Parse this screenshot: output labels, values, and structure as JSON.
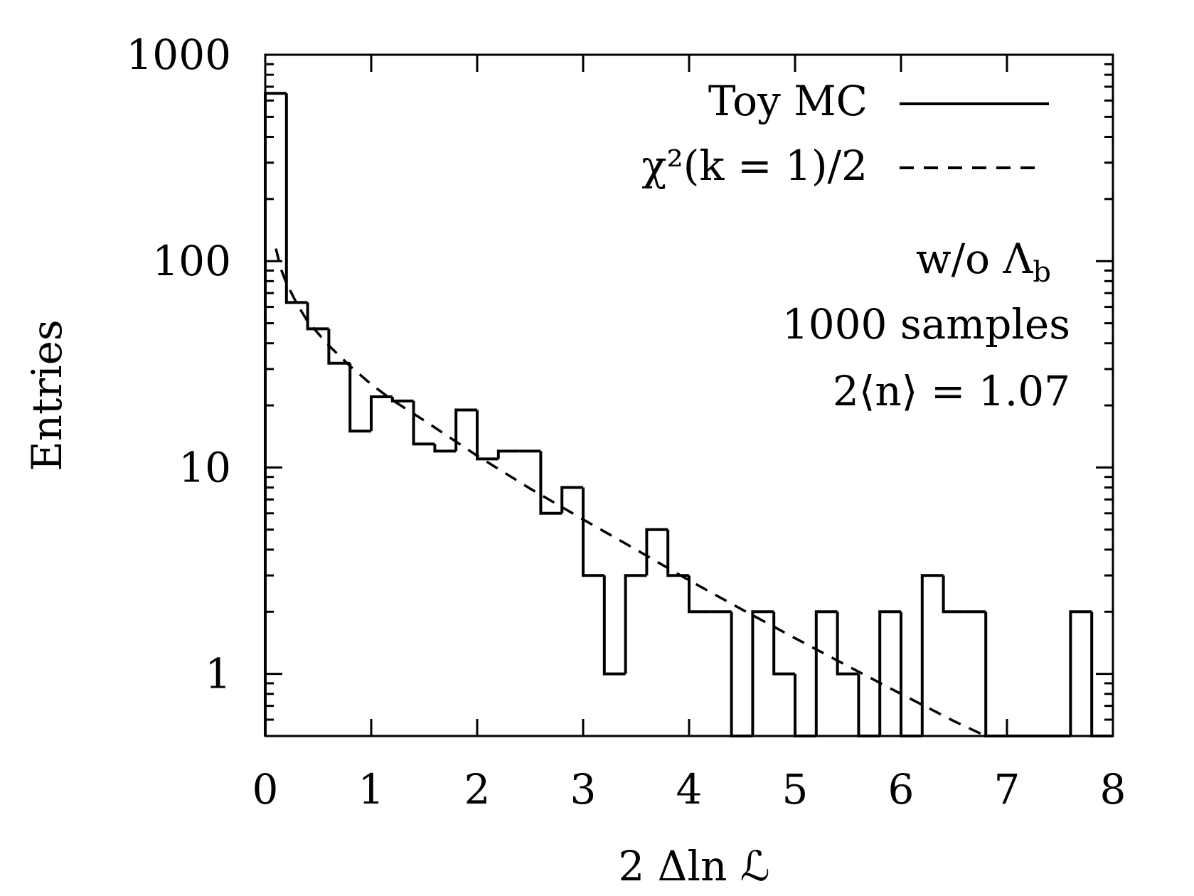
{
  "chart_data": {
    "type": "histogram",
    "xlabel": "2 Δln ℒ",
    "ylabel": "Entries",
    "xlim": [
      0,
      8
    ],
    "ylim": [
      0.5,
      1000
    ],
    "yscale": "log",
    "x_ticks": [
      "0",
      "1",
      "2",
      "3",
      "4",
      "5",
      "6",
      "7",
      "8"
    ],
    "y_ticks": [
      "1",
      "10",
      "100",
      "1000"
    ],
    "legend_position": "top-right",
    "series": [
      {
        "name": "Toy MC",
        "style": "solid-step",
        "color": "#000000",
        "bin_width": 0.2,
        "bin_edges_start": 0,
        "values": [
          650,
          63,
          47,
          32,
          15,
          22,
          21,
          13,
          12,
          19,
          11,
          12,
          12,
          6,
          8,
          3,
          1,
          3,
          5,
          3,
          2,
          2,
          0,
          2,
          1,
          0,
          2,
          1,
          0,
          2,
          0,
          3,
          2,
          2,
          0,
          0,
          0,
          0,
          2,
          0
        ]
      },
      {
        "name": "χ²(k = 1)/2",
        "style": "dashed",
        "color": "#000000",
        "x": [
          0.1,
          0.15,
          0.2,
          0.3,
          0.4,
          0.6,
          0.8,
          1.0,
          1.2,
          1.5,
          2.0,
          2.5,
          3.0,
          3.5,
          4.0,
          4.5,
          5.0,
          5.5,
          6.0,
          6.5,
          6.8
        ],
        "y": [
          115,
          91,
          78,
          62,
          51,
          39,
          31,
          25.3,
          21.2,
          16.9,
          11.4,
          7.9,
          5.6,
          4.0,
          2.84,
          2.05,
          1.49,
          1.09,
          0.8,
          0.59,
          0.5
        ]
      }
    ],
    "annotations": [
      "w/o Λ",
      "b",
      "1000 samples",
      "2⟨n⟩ = 1.07"
    ]
  }
}
